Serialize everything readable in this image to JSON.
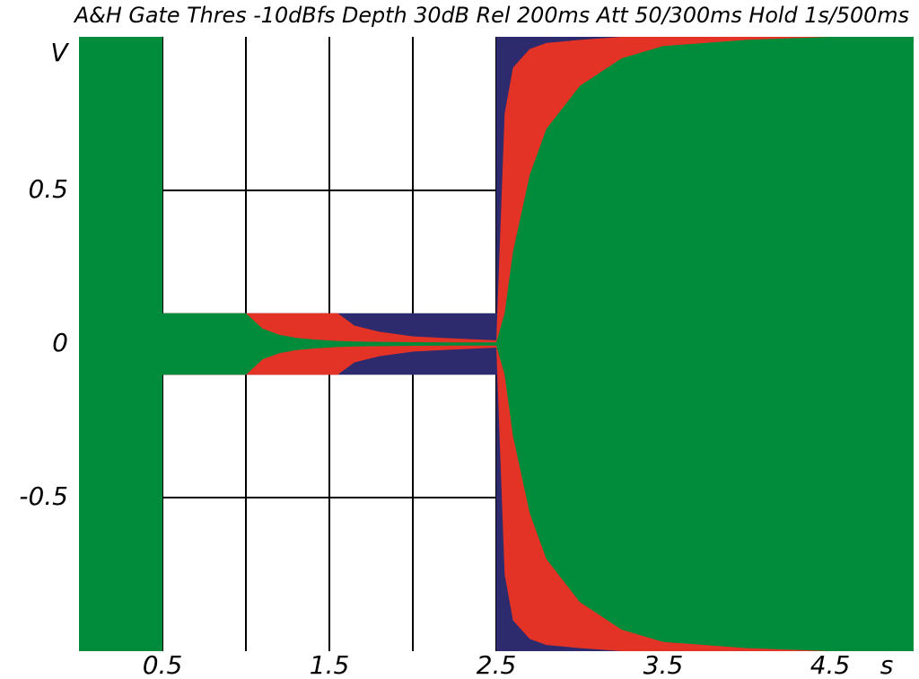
{
  "chart_data": {
    "type": "envelope",
    "title": "A&H Gate Thres -10dBfs Depth 30dB Rel 200ms Att 50/300ms Hold 1s/500ms",
    "x_label": "s",
    "y_label": "V",
    "x": [
      0,
      0.5,
      0.5,
      1.0,
      1.1,
      1.2,
      1.3,
      1.4,
      1.55,
      1.65,
      1.8,
      2.0,
      2.25,
      2.5,
      2.5,
      2.55,
      2.6,
      2.7,
      2.8,
      3.0,
      3.25,
      3.5,
      4.0,
      4.5,
      5.0
    ],
    "series": [
      {
        "color": "#2d2a6e",
        "values": [
          1,
          1,
          0.1,
          0.1,
          0.1,
          0.1,
          0.1,
          0.1,
          0.1,
          0.1,
          0.1,
          0.1,
          0.1,
          0.1,
          1,
          1,
          1,
          1,
          1,
          1,
          1,
          1,
          1,
          1,
          1
        ]
      },
      {
        "color": "#e33326",
        "values": [
          1,
          1,
          0.1,
          0.1,
          0.1,
          0.1,
          0.1,
          0.1,
          0.1,
          0.06,
          0.04,
          0.025,
          0.018,
          0.012,
          0.012,
          0.75,
          0.9,
          0.96,
          0.98,
          0.99,
          1,
          1,
          1,
          1,
          1
        ]
      },
      {
        "color": "#008c3a",
        "values": [
          1,
          1,
          0.1,
          0.1,
          0.05,
          0.03,
          0.02,
          0.015,
          0.01,
          0.008,
          0.007,
          0.006,
          0.005,
          0.005,
          0.005,
          0.1,
          0.3,
          0.55,
          0.7,
          0.84,
          0.93,
          0.97,
          0.99,
          1,
          1
        ]
      }
    ],
    "xlim": [
      0,
      5
    ],
    "ylim": [
      -1,
      1
    ],
    "xticks": [
      0.5,
      1.5,
      2.5,
      3.5,
      4.5
    ],
    "xminor": [
      1,
      2,
      3,
      4
    ],
    "yticks": [
      -0.5,
      0,
      0.5
    ],
    "grid": true
  }
}
